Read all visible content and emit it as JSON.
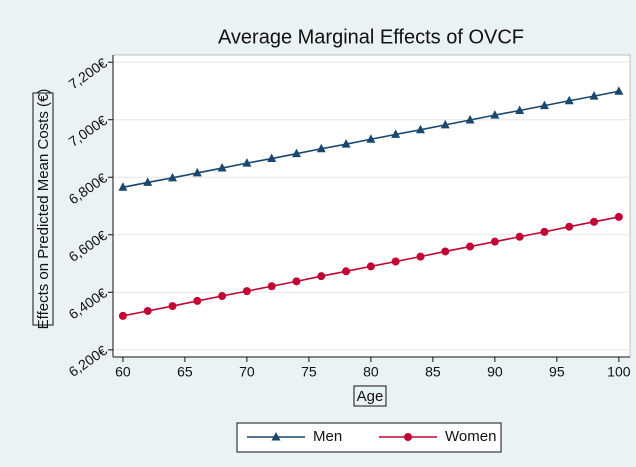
{
  "chart_data": {
    "type": "line",
    "title": "Average Marginal Effects of OVCF",
    "x_label": "Age",
    "y_label": "Effects on Predicted Mean Costs (€)",
    "x": [
      60,
      62,
      64,
      66,
      68,
      70,
      72,
      74,
      76,
      78,
      80,
      82,
      84,
      86,
      88,
      90,
      92,
      94,
      96,
      98,
      100
    ],
    "series": [
      {
        "name": "Men",
        "color": "#1a476f",
        "marker": "triangle",
        "values": [
          6765,
          6782,
          6798,
          6815,
          6832,
          6849,
          6865,
          6882,
          6899,
          6915,
          6932,
          6949,
          6965,
          6982,
          6999,
          7016,
          7032,
          7049,
          7066,
          7082,
          7099
        ]
      },
      {
        "name": "Women",
        "color": "#c10534",
        "marker": "circle",
        "values": [
          6318,
          6335,
          6352,
          6370,
          6387,
          6404,
          6421,
          6438,
          6456,
          6473,
          6490,
          6507,
          6524,
          6542,
          6559,
          6576,
          6593,
          6610,
          6628,
          6645,
          6662
        ]
      }
    ],
    "xlim": [
      59.2,
      100.9
    ],
    "ylim": [
      6175,
      7225
    ],
    "xticks": [
      60,
      65,
      70,
      75,
      80,
      85,
      90,
      95,
      100
    ],
    "yticks": [
      {
        "value": 6200,
        "label": "6,200€"
      },
      {
        "value": 6400,
        "label": "6,400€"
      },
      {
        "value": 6600,
        "label": "6,600€"
      },
      {
        "value": 6800,
        "label": "6,800€"
      },
      {
        "value": 7000,
        "label": "7,000€"
      },
      {
        "value": 7200,
        "label": "7,200€"
      }
    ],
    "grid": true,
    "legend": "bottom"
  }
}
